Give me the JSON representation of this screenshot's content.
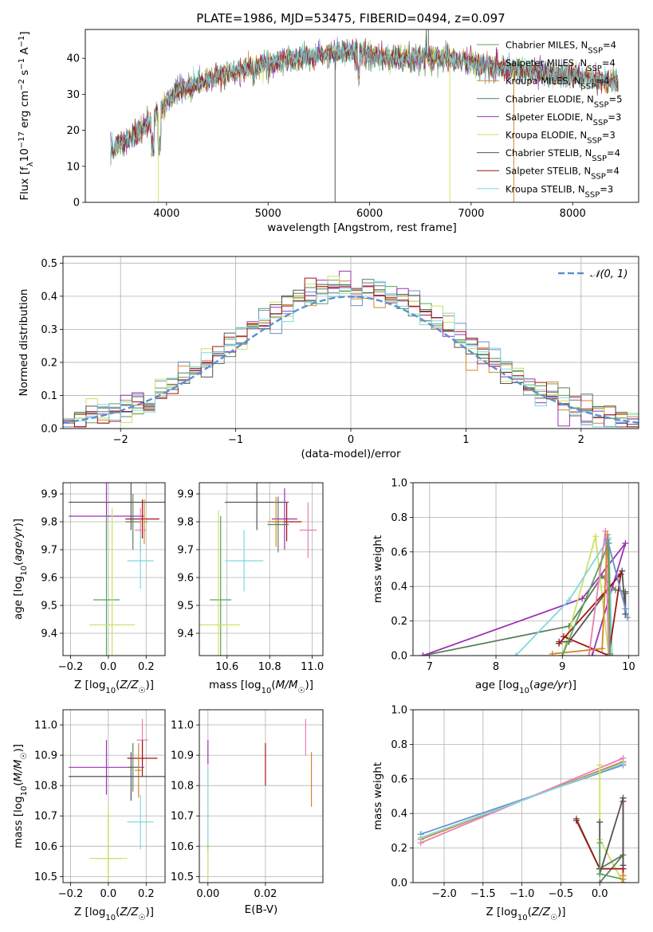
{
  "figure": {
    "title": "PLATE=1986, MJD=53475, FIBERID=0494, z=0.097"
  },
  "colors": {
    "chabrier_miles": "#58a35e",
    "salpeter_miles": "#6e8fc7",
    "kroupa_miles": "#d6862b",
    "chabrier_elodie": "#5a7f5e",
    "salpeter_elodie": "#9b33b5",
    "kroupa_elodie": "#cfe062",
    "chabrier_stelib": "#555555",
    "salpeter_stelib": "#a01515",
    "kroupa_stelib": "#7fd8df",
    "pink": "#e57fb5",
    "gauss": "#5b8fd6",
    "grid": "#b0b0b0"
  },
  "chart_data": [
    {
      "id": "spectrum",
      "type": "line",
      "xlabel": "wavelength [Angstrom, rest frame]",
      "ylabel": "Flux [f_λ 10^-17 erg cm^-2 s^-1 A^-1]",
      "xlim": [
        3200,
        8650
      ],
      "ylim": [
        0,
        48
      ],
      "xticks": [
        4000,
        5000,
        6000,
        7000,
        8000
      ],
      "yticks": [
        0,
        10,
        20,
        30,
        40
      ],
      "grid": false,
      "legend_position": "top-right",
      "legend": [
        {
          "key": "chabrier_miles",
          "name": "Chabrier MILES",
          "nssp": "4"
        },
        {
          "key": "salpeter_miles",
          "name": "Salpeter MILES",
          "nssp": "4"
        },
        {
          "key": "kroupa_miles",
          "name": "Kroupa MILES",
          "nssp": "4"
        },
        {
          "key": "chabrier_elodie",
          "name": "Chabrier ELODIE",
          "nssp": "5"
        },
        {
          "key": "salpeter_elodie",
          "name": "Salpeter ELODIE",
          "nssp": "3"
        },
        {
          "key": "kroupa_elodie",
          "name": "Kroupa ELODIE",
          "nssp": "3"
        },
        {
          "key": "chabrier_stelib",
          "name": "Chabrier STELIB",
          "nssp": "4"
        },
        {
          "key": "salpeter_stelib",
          "name": "Salpeter STELIB",
          "nssp": "4"
        },
        {
          "key": "kroupa_stelib",
          "name": "Kroupa STELIB",
          "nssp": "3"
        }
      ],
      "continuum": [
        [
          3450,
          15
        ],
        [
          3700,
          19
        ],
        [
          3850,
          23
        ],
        [
          3950,
          26
        ],
        [
          4100,
          31
        ],
        [
          4300,
          33
        ],
        [
          4500,
          35
        ],
        [
          4800,
          37
        ],
        [
          5100,
          39
        ],
        [
          5500,
          41
        ],
        [
          5800,
          42
        ],
        [
          6200,
          40
        ],
        [
          6500,
          40
        ],
        [
          6800,
          40
        ],
        [
          7100,
          38
        ],
        [
          7400,
          37
        ],
        [
          7700,
          36
        ],
        [
          8100,
          35
        ],
        [
          8450,
          33
        ]
      ],
      "spikes_down": [
        3920,
        5660,
        6790,
        7420
      ],
      "spikes_up": [
        6560,
        6580
      ]
    },
    {
      "id": "residuals",
      "type": "line",
      "xlabel": "(data-model)/error",
      "ylabel": "Normed distribution",
      "xlim": [
        -2.5,
        2.5
      ],
      "ylim": [
        0,
        0.52
      ],
      "xticks": [
        -2,
        -1,
        0,
        1,
        2
      ],
      "yticks": [
        0.0,
        0.1,
        0.2,
        0.3,
        0.4,
        0.5
      ],
      "grid": true,
      "legend_position": "top-right",
      "legend": [
        {
          "name": "𝒩(0, 1)"
        }
      ],
      "bin_width": 0.1
    },
    {
      "id": "age_vs_Z",
      "type": "scatter",
      "xlabel": "Z [log10(Z/Z☉)]",
      "ylabel": "age  [log10(age/yr)]",
      "xlim": [
        -0.24,
        0.3
      ],
      "ylim": [
        9.32,
        9.94
      ],
      "xticks": [
        -0.2,
        0.0,
        0.2
      ],
      "yticks": [
        9.4,
        9.5,
        9.6,
        9.7,
        9.8,
        9.9
      ],
      "grid": true,
      "points": [
        {
          "key": "chabrier_stelib",
          "x": 0.12,
          "y": 9.87,
          "xerr": 0.33,
          "yerr": 0.1
        },
        {
          "key": "salpeter_elodie",
          "x": -0.01,
          "y": 9.82,
          "xerr": 0.2,
          "yerr": 0.12
        },
        {
          "key": "salpeter_stelib",
          "x": 0.18,
          "y": 9.81,
          "xerr": 0.09,
          "yerr": 0.07
        },
        {
          "key": "kroupa_miles",
          "x": 0.19,
          "y": 9.8,
          "xerr": 0.02,
          "yerr": 0.08
        },
        {
          "key": "chabrier_elodie",
          "x": 0.13,
          "y": 9.8,
          "xerr": 0.04,
          "yerr": 0.1
        },
        {
          "key": "pink",
          "x": 0.17,
          "y": 9.77,
          "xerr": 0.03,
          "yerr": 0.08
        },
        {
          "key": "kroupa_stelib",
          "x": 0.17,
          "y": 9.66,
          "xerr": 0.07,
          "yerr": 0.1
        },
        {
          "key": "chabrier_miles",
          "x": -0.01,
          "y": 9.52,
          "xerr": 0.07,
          "yerr": 0.3
        },
        {
          "key": "kroupa_elodie",
          "x": 0.02,
          "y": 9.43,
          "xerr": 0.12,
          "yerr": 0.42
        }
      ]
    },
    {
      "id": "age_vs_mass",
      "type": "scatter",
      "xlabel": "mass [log10(M/M☉)]",
      "ylabel": "",
      "xlim": [
        10.47,
        11.05
      ],
      "ylim": [
        9.32,
        9.94
      ],
      "xticks": [
        10.6,
        10.8,
        11.0
      ],
      "yticks": [
        9.4,
        9.5,
        9.6,
        9.7,
        9.8,
        9.9
      ],
      "grid": true,
      "points": [
        {
          "key": "chabrier_stelib",
          "x": 10.74,
          "y": 9.87,
          "xerr": 0.15,
          "yerr": 0.1
        },
        {
          "key": "salpeter_elodie",
          "x": 10.87,
          "y": 9.81,
          "xerr": 0.06,
          "yerr": 0.11
        },
        {
          "key": "salpeter_stelib",
          "x": 10.88,
          "y": 9.8,
          "xerr": 0.07,
          "yerr": 0.07
        },
        {
          "key": "kroupa_miles",
          "x": 10.83,
          "y": 9.8,
          "xerr": 0.04,
          "yerr": 0.09
        },
        {
          "key": "chabrier_elodie",
          "x": 10.84,
          "y": 9.79,
          "xerr": 0.05,
          "yerr": 0.1
        },
        {
          "key": "pink",
          "x": 10.98,
          "y": 9.77,
          "xerr": 0.04,
          "yerr": 0.1
        },
        {
          "key": "kroupa_stelib",
          "x": 10.68,
          "y": 9.66,
          "xerr": 0.09,
          "yerr": 0.11
        },
        {
          "key": "chabrier_miles",
          "x": 10.57,
          "y": 9.52,
          "xerr": 0.05,
          "yerr": 0.3
        },
        {
          "key": "kroupa_elodie",
          "x": 10.56,
          "y": 9.43,
          "xerr": 0.1,
          "yerr": 0.41
        }
      ]
    },
    {
      "id": "weight_vs_age",
      "type": "line",
      "xlabel": "age  [log10(age/yr)]",
      "ylabel": "mass weight",
      "xlim": [
        6.75,
        10.15
      ],
      "ylim": [
        0,
        1
      ],
      "xticks": [
        7,
        8,
        9,
        10
      ],
      "yticks": [
        0.0,
        0.2,
        0.4,
        0.6,
        0.8,
        1.0
      ],
      "grid": true,
      "series": [
        {
          "key": "chabrier_elodie",
          "values": [
            [
              6.9,
              0.0
            ],
            [
              9.1,
              0.17
            ],
            [
              9.6,
              0.46
            ],
            [
              9.8,
              0.38
            ],
            [
              9.95,
              0.37
            ]
          ]
        },
        {
          "key": "salpeter_elodie",
          "values": [
            [
              6.9,
              0.0
            ],
            [
              9.3,
              0.33
            ],
            [
              9.95,
              0.65
            ],
            [
              9.45,
              0.0
            ]
          ]
        },
        {
          "key": "kroupa_elodie",
          "values": [
            [
              9.0,
              0.0
            ],
            [
              9.5,
              0.69
            ],
            [
              9.7,
              0.0
            ]
          ]
        },
        {
          "key": "kroupa_stelib",
          "values": [
            [
              8.3,
              0.0
            ],
            [
              9.1,
              0.32
            ],
            [
              9.7,
              0.68
            ],
            [
              9.75,
              0.0
            ]
          ]
        },
        {
          "key": "chabrier_stelib",
          "values": [
            [
              8.95,
              0.08
            ],
            [
              9.1,
              0.08
            ],
            [
              9.9,
              0.49
            ],
            [
              9.95,
              0.24
            ],
            [
              9.95,
              0.36
            ]
          ]
        },
        {
          "key": "salpeter_stelib",
          "values": [
            [
              8.95,
              0.07
            ],
            [
              9.88,
              0.47
            ],
            [
              9.7,
              0.0
            ],
            [
              9.02,
              0.11
            ]
          ]
        },
        {
          "key": "pink",
          "values": [
            [
              9.4,
              0.0
            ],
            [
              9.65,
              0.72
            ],
            [
              9.7,
              0.0
            ]
          ]
        },
        {
          "key": "kroupa_miles",
          "values": [
            [
              8.85,
              0.01
            ],
            [
              9.6,
              0.04
            ],
            [
              9.68,
              0.7
            ],
            [
              9.72,
              0.0
            ]
          ]
        },
        {
          "key": "chabrier_miles",
          "values": [
            [
              9.0,
              0.0
            ],
            [
              9.7,
              0.65
            ],
            [
              9.72,
              0.01
            ]
          ]
        },
        {
          "key": "salpeter_miles",
          "values": [
            [
              9.68,
              0.67
            ],
            [
              9.95,
              0.27
            ],
            [
              9.98,
              0.22
            ]
          ]
        }
      ]
    },
    {
      "id": "mass_vs_Z",
      "type": "scatter",
      "xlabel": "Z [log10(Z/Z☉)]",
      "ylabel": "mass [log10(M/M☉)]",
      "xlim": [
        -0.24,
        0.3
      ],
      "ylim": [
        10.48,
        11.05
      ],
      "xticks": [
        -0.2,
        0.0,
        0.2
      ],
      "yticks": [
        10.5,
        10.6,
        10.7,
        10.8,
        10.9,
        11.0
      ],
      "grid": true,
      "points": [
        {
          "key": "pink",
          "x": 0.18,
          "y": 10.95,
          "xerr": 0.03,
          "yerr": 0.07
        },
        {
          "key": "salpeter_stelib",
          "x": 0.18,
          "y": 10.89,
          "xerr": 0.08,
          "yerr": 0.06
        },
        {
          "key": "salpeter_elodie",
          "x": -0.01,
          "y": 10.86,
          "xerr": 0.2,
          "yerr": 0.09
        },
        {
          "key": "chabrier_elodie",
          "x": 0.13,
          "y": 10.86,
          "xerr": 0.03,
          "yerr": 0.08
        },
        {
          "key": "kroupa_miles",
          "x": 0.16,
          "y": 10.85,
          "xerr": 0.02,
          "yerr": 0.09
        },
        {
          "key": "chabrier_stelib",
          "x": 0.12,
          "y": 10.83,
          "xerr": 0.33,
          "yerr": 0.08
        },
        {
          "key": "kroupa_stelib",
          "x": 0.17,
          "y": 10.68,
          "xerr": 0.07,
          "yerr": 0.09
        },
        {
          "key": "chabrier_miles",
          "x": 0.0,
          "y": 10.56,
          "xerr": 0.07,
          "yerr": 0.15
        },
        {
          "key": "kroupa_elodie",
          "x": 0.0,
          "y": 10.56,
          "xerr": 0.1,
          "yerr": 0.18
        }
      ]
    },
    {
      "id": "mass_vs_ebv",
      "type": "scatter",
      "xlabel": "E(B-V)",
      "ylabel": "",
      "xlim": [
        -0.003,
        0.04
      ],
      "ylim": [
        10.48,
        11.05
      ],
      "xticks": [
        0.0,
        0.02
      ],
      "xtick_labels": [
        "0.00",
        "0.02"
      ],
      "yticks": [
        10.5,
        10.6,
        10.7,
        10.8,
        10.9,
        11.0
      ],
      "grid": true,
      "points": [
        {
          "key": "pink",
          "x": 0.034,
          "y": 10.96,
          "xerr": 0,
          "yerr": 0.06
        },
        {
          "key": "salpeter_stelib",
          "x": 0.02,
          "y": 10.87,
          "xerr": 0,
          "yerr": 0.07
        },
        {
          "key": "salpeter_elodie",
          "x": 0.0,
          "y": 10.91,
          "xerr": 0,
          "yerr": 0.04
        },
        {
          "key": "kroupa_miles",
          "x": 0.036,
          "y": 10.82,
          "xerr": 0,
          "yerr": 0.09
        },
        {
          "key": "kroupa_stelib",
          "x": 0.0,
          "y": 10.72,
          "xerr": 0,
          "yerr": 0.14
        },
        {
          "key": "chabrier_stelib",
          "x": 0.0,
          "y": 10.6,
          "xerr": 0,
          "yerr": 0.01
        },
        {
          "key": "kroupa_elodie",
          "x": 0.0,
          "y": 10.55,
          "xerr": 0,
          "yerr": 0.06
        }
      ]
    },
    {
      "id": "weight_vs_Z",
      "type": "line",
      "xlabel": "Z [log10(Z/Z☉)]",
      "ylabel": "mass weight",
      "xlim": [
        -2.4,
        0.5
      ],
      "ylim": [
        0,
        1
      ],
      "xticks": [
        -2.0,
        -1.5,
        -1.0,
        -0.5,
        0.0
      ],
      "yticks": [
        0.0,
        0.2,
        0.4,
        0.6,
        0.8,
        1.0
      ],
      "grid": true,
      "series": [
        {
          "key": "salpeter_miles",
          "values": [
            [
              -2.3,
              0.28
            ],
            [
              0.3,
              0.68
            ]
          ]
        },
        {
          "key": "kroupa_miles",
          "values": [
            [
              -2.3,
              0.25
            ],
            [
              0.3,
              0.7
            ]
          ]
        },
        {
          "key": "pink",
          "values": [
            [
              -2.3,
              0.23
            ],
            [
              0.3,
              0.72
            ]
          ]
        },
        {
          "key": "kroupa_stelib",
          "values": [
            [
              -2.3,
              0.26
            ],
            [
              0.3,
              0.69
            ]
          ]
        },
        {
          "key": "kroupa_elodie",
          "values": [
            [
              0.0,
              0.68
            ],
            [
              0.0,
              0.25
            ],
            [
              0.3,
              0.0
            ]
          ]
        },
        {
          "key": "chabrier_elodie",
          "values": [
            [
              -0.3,
              0.37
            ],
            [
              0.0,
              0.08
            ],
            [
              0.3,
              0.16
            ],
            [
              0.0,
              0.0
            ]
          ]
        },
        {
          "key": "salpeter_stelib",
          "values": [
            [
              -0.3,
              0.36
            ],
            [
              0.0,
              0.08
            ],
            [
              0.3,
              0.08
            ],
            [
              0.3,
              0.47
            ],
            [
              0.3,
              0.0
            ]
          ]
        },
        {
          "key": "chabrier_stelib",
          "values": [
            [
              0.0,
              0.35
            ],
            [
              0.0,
              0.05
            ],
            [
              0.3,
              0.49
            ],
            [
              0.3,
              0.1
            ]
          ]
        },
        {
          "key": "chabrier_miles",
          "values": [
            [
              0.0,
              0.23
            ],
            [
              0.0,
              0.05
            ],
            [
              0.3,
              0.02
            ]
          ]
        },
        {
          "key": "kroupa_miles",
          "values": [
            [
              0.3,
              0.04
            ],
            [
              0.3,
              0.02
            ]
          ]
        }
      ]
    }
  ]
}
